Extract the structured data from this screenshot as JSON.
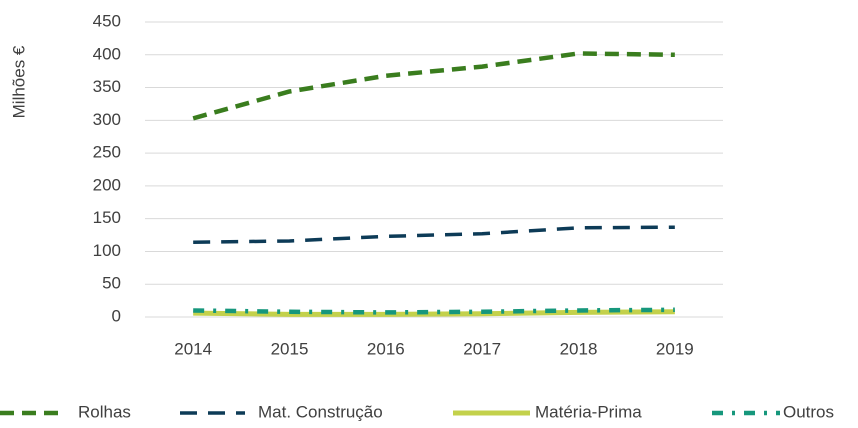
{
  "chart_data": {
    "type": "line",
    "y_label": "Milhões €",
    "categories": [
      "2014",
      "2015",
      "2016",
      "2017",
      "2018",
      "2019"
    ],
    "series": [
      {
        "name": "Rolhas",
        "color": "#3a7d1e",
        "values": [
          303,
          344,
          368,
          382,
          402,
          400
        ]
      },
      {
        "name": "Mat. Construção",
        "color": "#0d3b57",
        "values": [
          114,
          116,
          123,
          127,
          136,
          137
        ]
      },
      {
        "name": "Matéria-Prima",
        "color": "#c3d14b",
        "values": [
          6,
          4,
          4,
          5,
          7,
          8
        ]
      },
      {
        "name": "Outros",
        "color": "#16977c",
        "values": [
          10,
          8,
          7,
          8,
          10,
          11
        ]
      }
    ],
    "ylim": [
      0,
      450
    ],
    "yticks": [
      0,
      50,
      100,
      150,
      200,
      250,
      300,
      350,
      400,
      450
    ],
    "grid": true,
    "legend": "bottom"
  }
}
